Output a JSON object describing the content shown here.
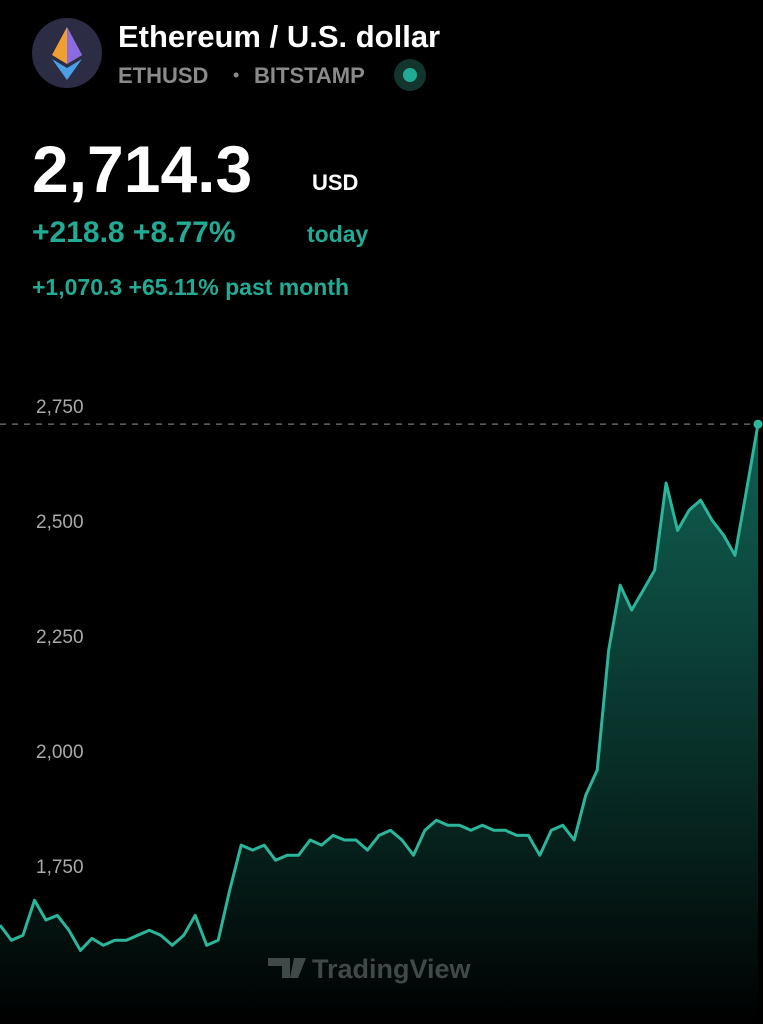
{
  "header": {
    "title": "Ethereum / U.S. dollar",
    "symbol": "ETHUSD",
    "separator": "•",
    "exchange": "BITSTAMP"
  },
  "quote": {
    "price": "2,714.3",
    "currency": "USD",
    "change_today": "+218.8 +8.77%",
    "today_label": "today",
    "change_month": "+1,070.3 +65.11% past month"
  },
  "chart_data": {
    "type": "area",
    "color": "#2bb59a",
    "watermark": "TradingView",
    "values": [
      1622,
      1589,
      1600,
      1676,
      1633,
      1643,
      1611,
      1567,
      1593,
      1578,
      1589,
      1589,
      1600,
      1611,
      1600,
      1578,
      1600,
      1643,
      1578,
      1589,
      1698,
      1796,
      1785,
      1796,
      1763,
      1774,
      1774,
      1807,
      1796,
      1817,
      1807,
      1807,
      1785,
      1817,
      1828,
      1807,
      1774,
      1828,
      1850,
      1839,
      1839,
      1828,
      1839,
      1828,
      1828,
      1817,
      1817,
      1774,
      1828,
      1839,
      1807,
      1904,
      1959,
      2220,
      2361,
      2307,
      2350,
      2393,
      2583,
      2480,
      2524,
      2546,
      2502,
      2470,
      2426,
      2567,
      2711
    ],
    "ylim": [
      1407,
      2807
    ],
    "yticks": [
      {
        "value": 1750,
        "label": "1,750"
      },
      {
        "value": 2000,
        "label": "2,000"
      },
      {
        "value": 2250,
        "label": "2,250"
      },
      {
        "value": 2500,
        "label": "2,500"
      },
      {
        "value": 2750,
        "label": "2,750"
      }
    ]
  }
}
